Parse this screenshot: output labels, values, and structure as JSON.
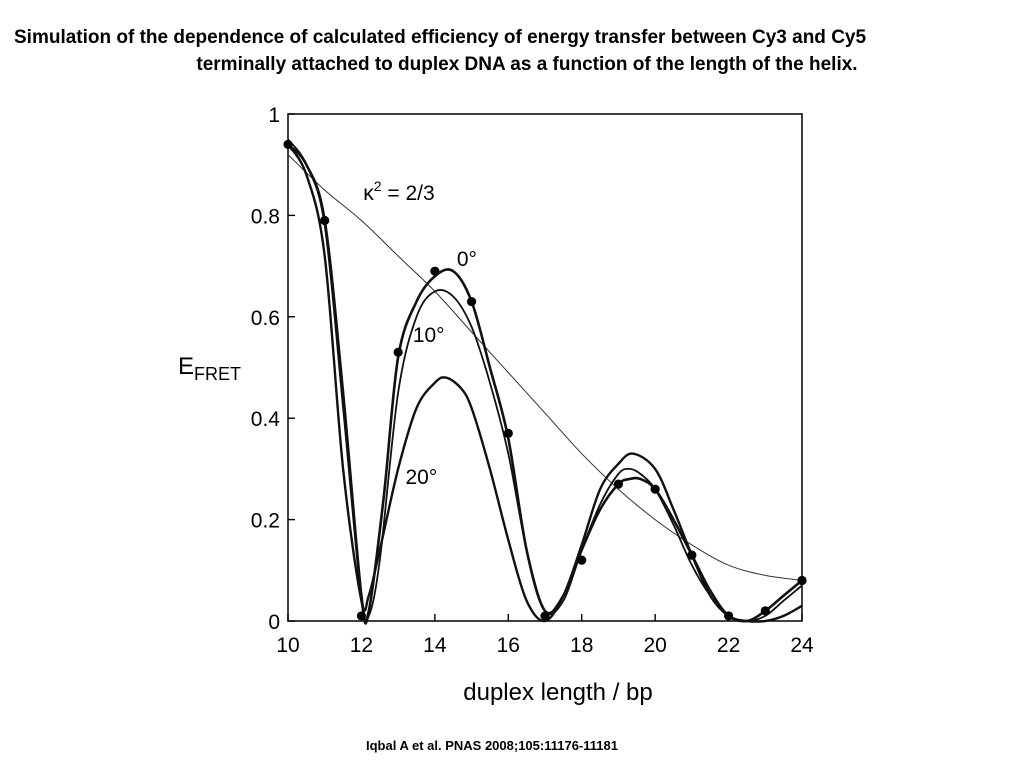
{
  "slide": {
    "title_line1": "Simulation of the dependence of calculated efficiency of energy transfer between Cy3 and Cy5",
    "title_line2": "terminally attached to duplex DNA as a function of the length of the helix.",
    "citation": "Iqbal A et al. PNAS 2008;105:11176-11181"
  },
  "chart_data": {
    "type": "line",
    "title": "",
    "xlabel": "duplex length / bp",
    "ylabel_main": "E",
    "ylabel_sub": "FRET",
    "xlim": [
      10,
      24
    ],
    "ylim": [
      0,
      1
    ],
    "xticks": [
      10,
      12,
      14,
      16,
      18,
      20,
      22,
      24
    ],
    "yticks": [
      0,
      0.2,
      0.4,
      0.6,
      0.8,
      1
    ],
    "ytick_labels": [
      "0",
      "0.2",
      "0.4",
      "0.6",
      "0.8",
      "1"
    ],
    "grid": false,
    "colors": {
      "line": "#111111",
      "thin": "#333333",
      "marker": "#000000"
    },
    "series": [
      {
        "name": "κ² = 2/3",
        "x": [
          10,
          11,
          12,
          13,
          14,
          15,
          16,
          17,
          18,
          19,
          20,
          21,
          22,
          23,
          24
        ],
        "y": [
          0.92,
          0.85,
          0.79,
          0.72,
          0.65,
          0.57,
          0.49,
          0.41,
          0.33,
          0.26,
          0.2,
          0.15,
          0.11,
          0.09,
          0.08
        ]
      },
      {
        "name": "0°",
        "x": [
          10,
          10.5,
          11,
          11.5,
          12,
          12.2,
          12.6,
          13,
          13.5,
          14,
          14.5,
          15,
          15.5,
          16,
          16.5,
          17,
          17.5,
          18,
          18.5,
          19,
          19.3,
          19.6,
          20,
          20.5,
          21,
          21.5,
          22,
          22.5,
          23,
          23.5,
          24
        ],
        "y": [
          0.94,
          0.9,
          0.79,
          0.45,
          0.05,
          0.02,
          0.24,
          0.52,
          0.63,
          0.68,
          0.69,
          0.63,
          0.5,
          0.36,
          0.14,
          0.02,
          0.05,
          0.14,
          0.22,
          0.27,
          0.28,
          0.28,
          0.26,
          0.2,
          0.13,
          0.06,
          0.01,
          0.0,
          0.02,
          0.05,
          0.08
        ]
      },
      {
        "name": "10°",
        "x": [
          10,
          10.5,
          11,
          11.5,
          12,
          12.2,
          12.5,
          13,
          13.5,
          14,
          14.5,
          15,
          15.5,
          16,
          16.5,
          17,
          17.5,
          18,
          18.5,
          19,
          19.3,
          19.6,
          20,
          20.5,
          21,
          21.5,
          22,
          22.5,
          23,
          23.5,
          24
        ],
        "y": [
          0.95,
          0.9,
          0.78,
          0.42,
          0.04,
          0.01,
          0.12,
          0.45,
          0.6,
          0.65,
          0.64,
          0.58,
          0.47,
          0.33,
          0.14,
          0.02,
          0.04,
          0.14,
          0.23,
          0.29,
          0.3,
          0.29,
          0.26,
          0.19,
          0.11,
          0.05,
          0.01,
          0.0,
          0.01,
          0.04,
          0.07
        ]
      },
      {
        "name": "20°",
        "x": [
          10,
          10.5,
          11,
          11.5,
          12,
          12.2,
          12.5,
          13,
          13.5,
          14,
          14.3,
          14.7,
          15,
          15.5,
          16,
          16.5,
          17,
          17.5,
          18,
          18.5,
          19,
          19.4,
          20,
          20.5,
          21,
          21.5,
          22,
          22.5,
          23,
          23.5,
          24
        ],
        "y": [
          0.94,
          0.88,
          0.72,
          0.3,
          0.04,
          0.05,
          0.14,
          0.3,
          0.42,
          0.47,
          0.48,
          0.46,
          0.42,
          0.3,
          0.16,
          0.04,
          0.0,
          0.05,
          0.15,
          0.26,
          0.31,
          0.33,
          0.3,
          0.22,
          0.13,
          0.05,
          0.01,
          0.0,
          0.0,
          0.01,
          0.03
        ]
      }
    ],
    "points": {
      "x": [
        10,
        11,
        12,
        13,
        14,
        15,
        16,
        17,
        18,
        19,
        20,
        21,
        22,
        23,
        24
      ],
      "y": [
        0.94,
        0.79,
        0.01,
        0.53,
        0.69,
        0.63,
        0.37,
        0.01,
        0.12,
        0.27,
        0.26,
        0.13,
        0.01,
        0.02,
        0.08
      ]
    },
    "annotations": [
      {
        "text_main": "κ",
        "text_sup": "2",
        "text_rest": " = 2/3",
        "x": 12.05,
        "y": 0.83
      },
      {
        "text": "0°",
        "x": 14.6,
        "y": 0.7
      },
      {
        "text": "10°",
        "x": 13.4,
        "y": 0.55
      },
      {
        "text": "20°",
        "x": 13.2,
        "y": 0.27
      }
    ]
  }
}
